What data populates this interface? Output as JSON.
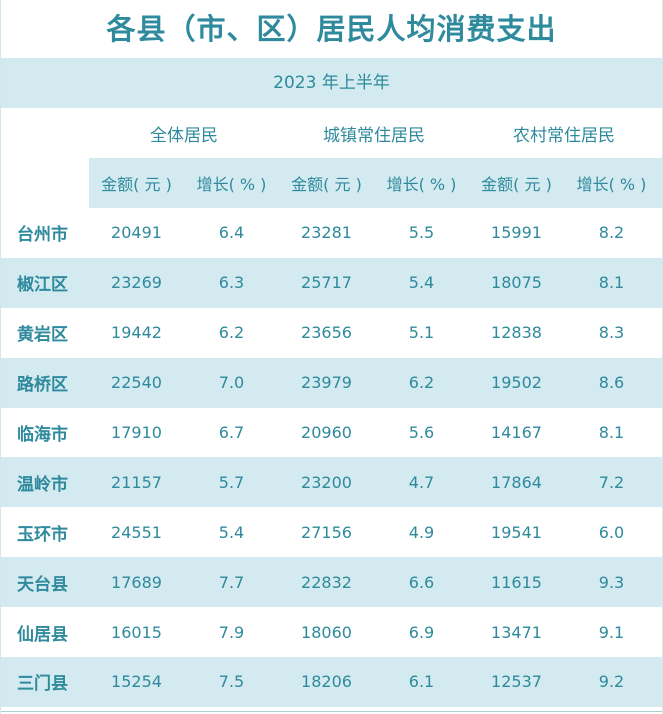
{
  "title": "各县（市、区）居民人均消费支出",
  "period": "2023 年上半年",
  "groups": [
    "全体居民",
    "城镇常住居民",
    "农村常住居民"
  ],
  "subheaders": [
    "金额( 元 )",
    "增长( % )",
    "金额( 元 )",
    "增长( % )",
    "金额( 元 )",
    "增长( % )"
  ],
  "rows": [
    {
      "name": "台州市",
      "values": [
        "20491",
        "6.4",
        "23281",
        "5.5",
        "15991",
        "8.2"
      ]
    },
    {
      "name": "椒江区",
      "values": [
        "23269",
        "6.3",
        "25717",
        "5.4",
        "18075",
        "8.1"
      ]
    },
    {
      "name": "黄岩区",
      "values": [
        "19442",
        "6.2",
        "23656",
        "5.1",
        "12838",
        "8.3"
      ]
    },
    {
      "name": "路桥区",
      "values": [
        "22540",
        "7.0",
        "23979",
        "6.2",
        "19502",
        "8.6"
      ]
    },
    {
      "name": "临海市",
      "values": [
        "17910",
        "6.7",
        "20960",
        "5.6",
        "14167",
        "8.1"
      ]
    },
    {
      "name": "温岭市",
      "values": [
        "21157",
        "5.7",
        "23200",
        "4.7",
        "17864",
        "7.2"
      ]
    },
    {
      "name": "玉环市",
      "values": [
        "24551",
        "5.4",
        "27156",
        "4.9",
        "19541",
        "6.0"
      ]
    },
    {
      "name": "天台县",
      "values": [
        "17689",
        "7.7",
        "22832",
        "6.6",
        "11615",
        "9.3"
      ]
    },
    {
      "name": "仙居县",
      "values": [
        "16015",
        "7.9",
        "18060",
        "6.9",
        "13471",
        "9.1"
      ]
    },
    {
      "name": "三门县",
      "values": [
        "15254",
        "7.5",
        "18206",
        "6.1",
        "12537",
        "9.2"
      ]
    }
  ],
  "colors": {
    "text": "#2e8a9c",
    "band": "#d3eaf0"
  }
}
